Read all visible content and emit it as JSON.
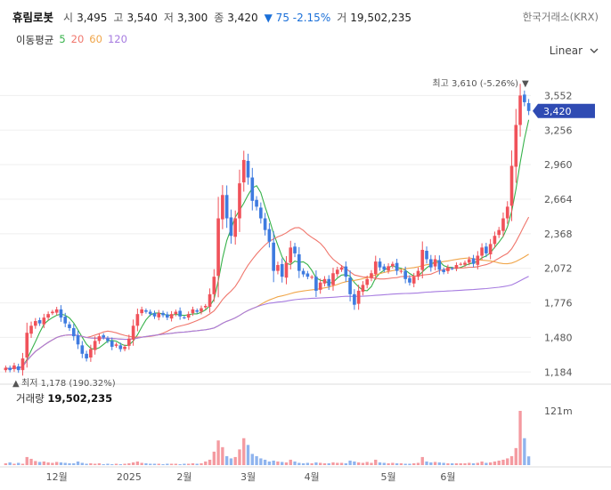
{
  "header": {
    "name": "휴림로봇",
    "open_label": "시",
    "open": "3,495",
    "high_label": "고",
    "high": "3,540",
    "low_label": "저",
    "low": "3,300",
    "close_label": "종",
    "close": "3,420",
    "change": "▼ 75 -2.15%",
    "volume_label": "거",
    "volume": "19,502,235",
    "exchange": "한국거래소(KRX)"
  },
  "ma_legend": {
    "title": "이동평균",
    "items": [
      {
        "label": "5",
        "color": "#36b24a"
      },
      {
        "label": "20",
        "color": "#f0766c"
      },
      {
        "label": "60",
        "color": "#f0a64a"
      },
      {
        "label": "120",
        "color": "#a67be0"
      }
    ]
  },
  "scale_selector": {
    "value": "Linear",
    "icon": "chevron-down-icon"
  },
  "colors": {
    "up": "#f0525a",
    "down": "#3e7be0",
    "current_tag": "#2f4bb3"
  },
  "chart_data": {
    "type": "candlestick",
    "y_ticks": [
      "3,552",
      "3,256",
      "2,960",
      "2,664",
      "2,368",
      "2,072",
      "1,776",
      "1,480",
      "1,184"
    ],
    "y_tick_values": [
      3552,
      3256,
      2960,
      2664,
      2368,
      2072,
      1776,
      1480,
      1184
    ],
    "ylim": [
      1110,
      3700
    ],
    "x_ticks": [
      "12월",
      "2025",
      "2월",
      "3월",
      "4월",
      "5월",
      "6월"
    ],
    "x_tick_index": [
      12,
      29,
      42,
      57,
      72,
      90,
      104
    ],
    "current_price_label": "3,420",
    "current_price": 3420,
    "high_annotation": {
      "text": "최고 3,610 (-5.26%)",
      "value": 3610,
      "marker": "▼"
    },
    "low_annotation": {
      "text": "최저 1,178 (190.32%)",
      "value": 1178,
      "marker": "▲"
    },
    "volume_title": "거래량",
    "volume_value": "19,502,235",
    "volume_axis_label": "121m",
    "volume_max": 121,
    "close": [
      1220,
      1200,
      1240,
      1200,
      1300,
      1520,
      1580,
      1620,
      1600,
      1650,
      1680,
      1700,
      1720,
      1650,
      1600,
      1560,
      1490,
      1420,
      1340,
      1300,
      1380,
      1450,
      1490,
      1480,
      1450,
      1400,
      1420,
      1380,
      1400,
      1470,
      1580,
      1680,
      1720,
      1700,
      1680,
      1660,
      1690,
      1670,
      1650,
      1680,
      1700,
      1660,
      1650,
      1680,
      1720,
      1700,
      1730,
      1750,
      1850,
      2000,
      2500,
      2700,
      2500,
      2350,
      2500,
      2800,
      3000,
      2850,
      2650,
      2600,
      2500,
      2400,
      2300,
      2050,
      2100,
      2000,
      2120,
      2250,
      2200,
      2050,
      2020,
      2000,
      2000,
      1880,
      1950,
      1980,
      1920,
      2030,
      2060,
      2080,
      2000,
      1850,
      1760,
      1880,
      1930,
      1980,
      2030,
      2130,
      2080,
      2060,
      2090,
      2110,
      2050,
      2050,
      1980,
      1950,
      2000,
      2050,
      2230,
      2150,
      2080,
      2150,
      2060,
      2040,
      2080,
      2070,
      2100,
      2110,
      2120,
      2150,
      2110,
      2180,
      2250,
      2200,
      2280,
      2350,
      2400,
      2500,
      2600,
      2950,
      3300,
      3552,
      3495,
      3420
    ],
    "volume_m": [
      4,
      6,
      3,
      5,
      3,
      18,
      14,
      9,
      7,
      8,
      6,
      5,
      7,
      6,
      5,
      4,
      4,
      8,
      5,
      3,
      4,
      3,
      4,
      2,
      3,
      2,
      3,
      2,
      3,
      4,
      6,
      8,
      5,
      4,
      3,
      3,
      3,
      2,
      3,
      3,
      3,
      2,
      3,
      3,
      4,
      3,
      4,
      8,
      12,
      30,
      55,
      40,
      20,
      15,
      18,
      35,
      60,
      45,
      25,
      20,
      15,
      12,
      8,
      10,
      8,
      7,
      6,
      12,
      8,
      5,
      4,
      5,
      4,
      6,
      5,
      4,
      4,
      6,
      5,
      5,
      4,
      10,
      8,
      6,
      5,
      7,
      5,
      12,
      6,
      5,
      4,
      5,
      4,
      4,
      3,
      3,
      4,
      5,
      18,
      8,
      6,
      7,
      6,
      5,
      4,
      4,
      4,
      4,
      4,
      5,
      4,
      5,
      8,
      5,
      6,
      8,
      10,
      12,
      15,
      20,
      38,
      121,
      60,
      19.5
    ]
  }
}
